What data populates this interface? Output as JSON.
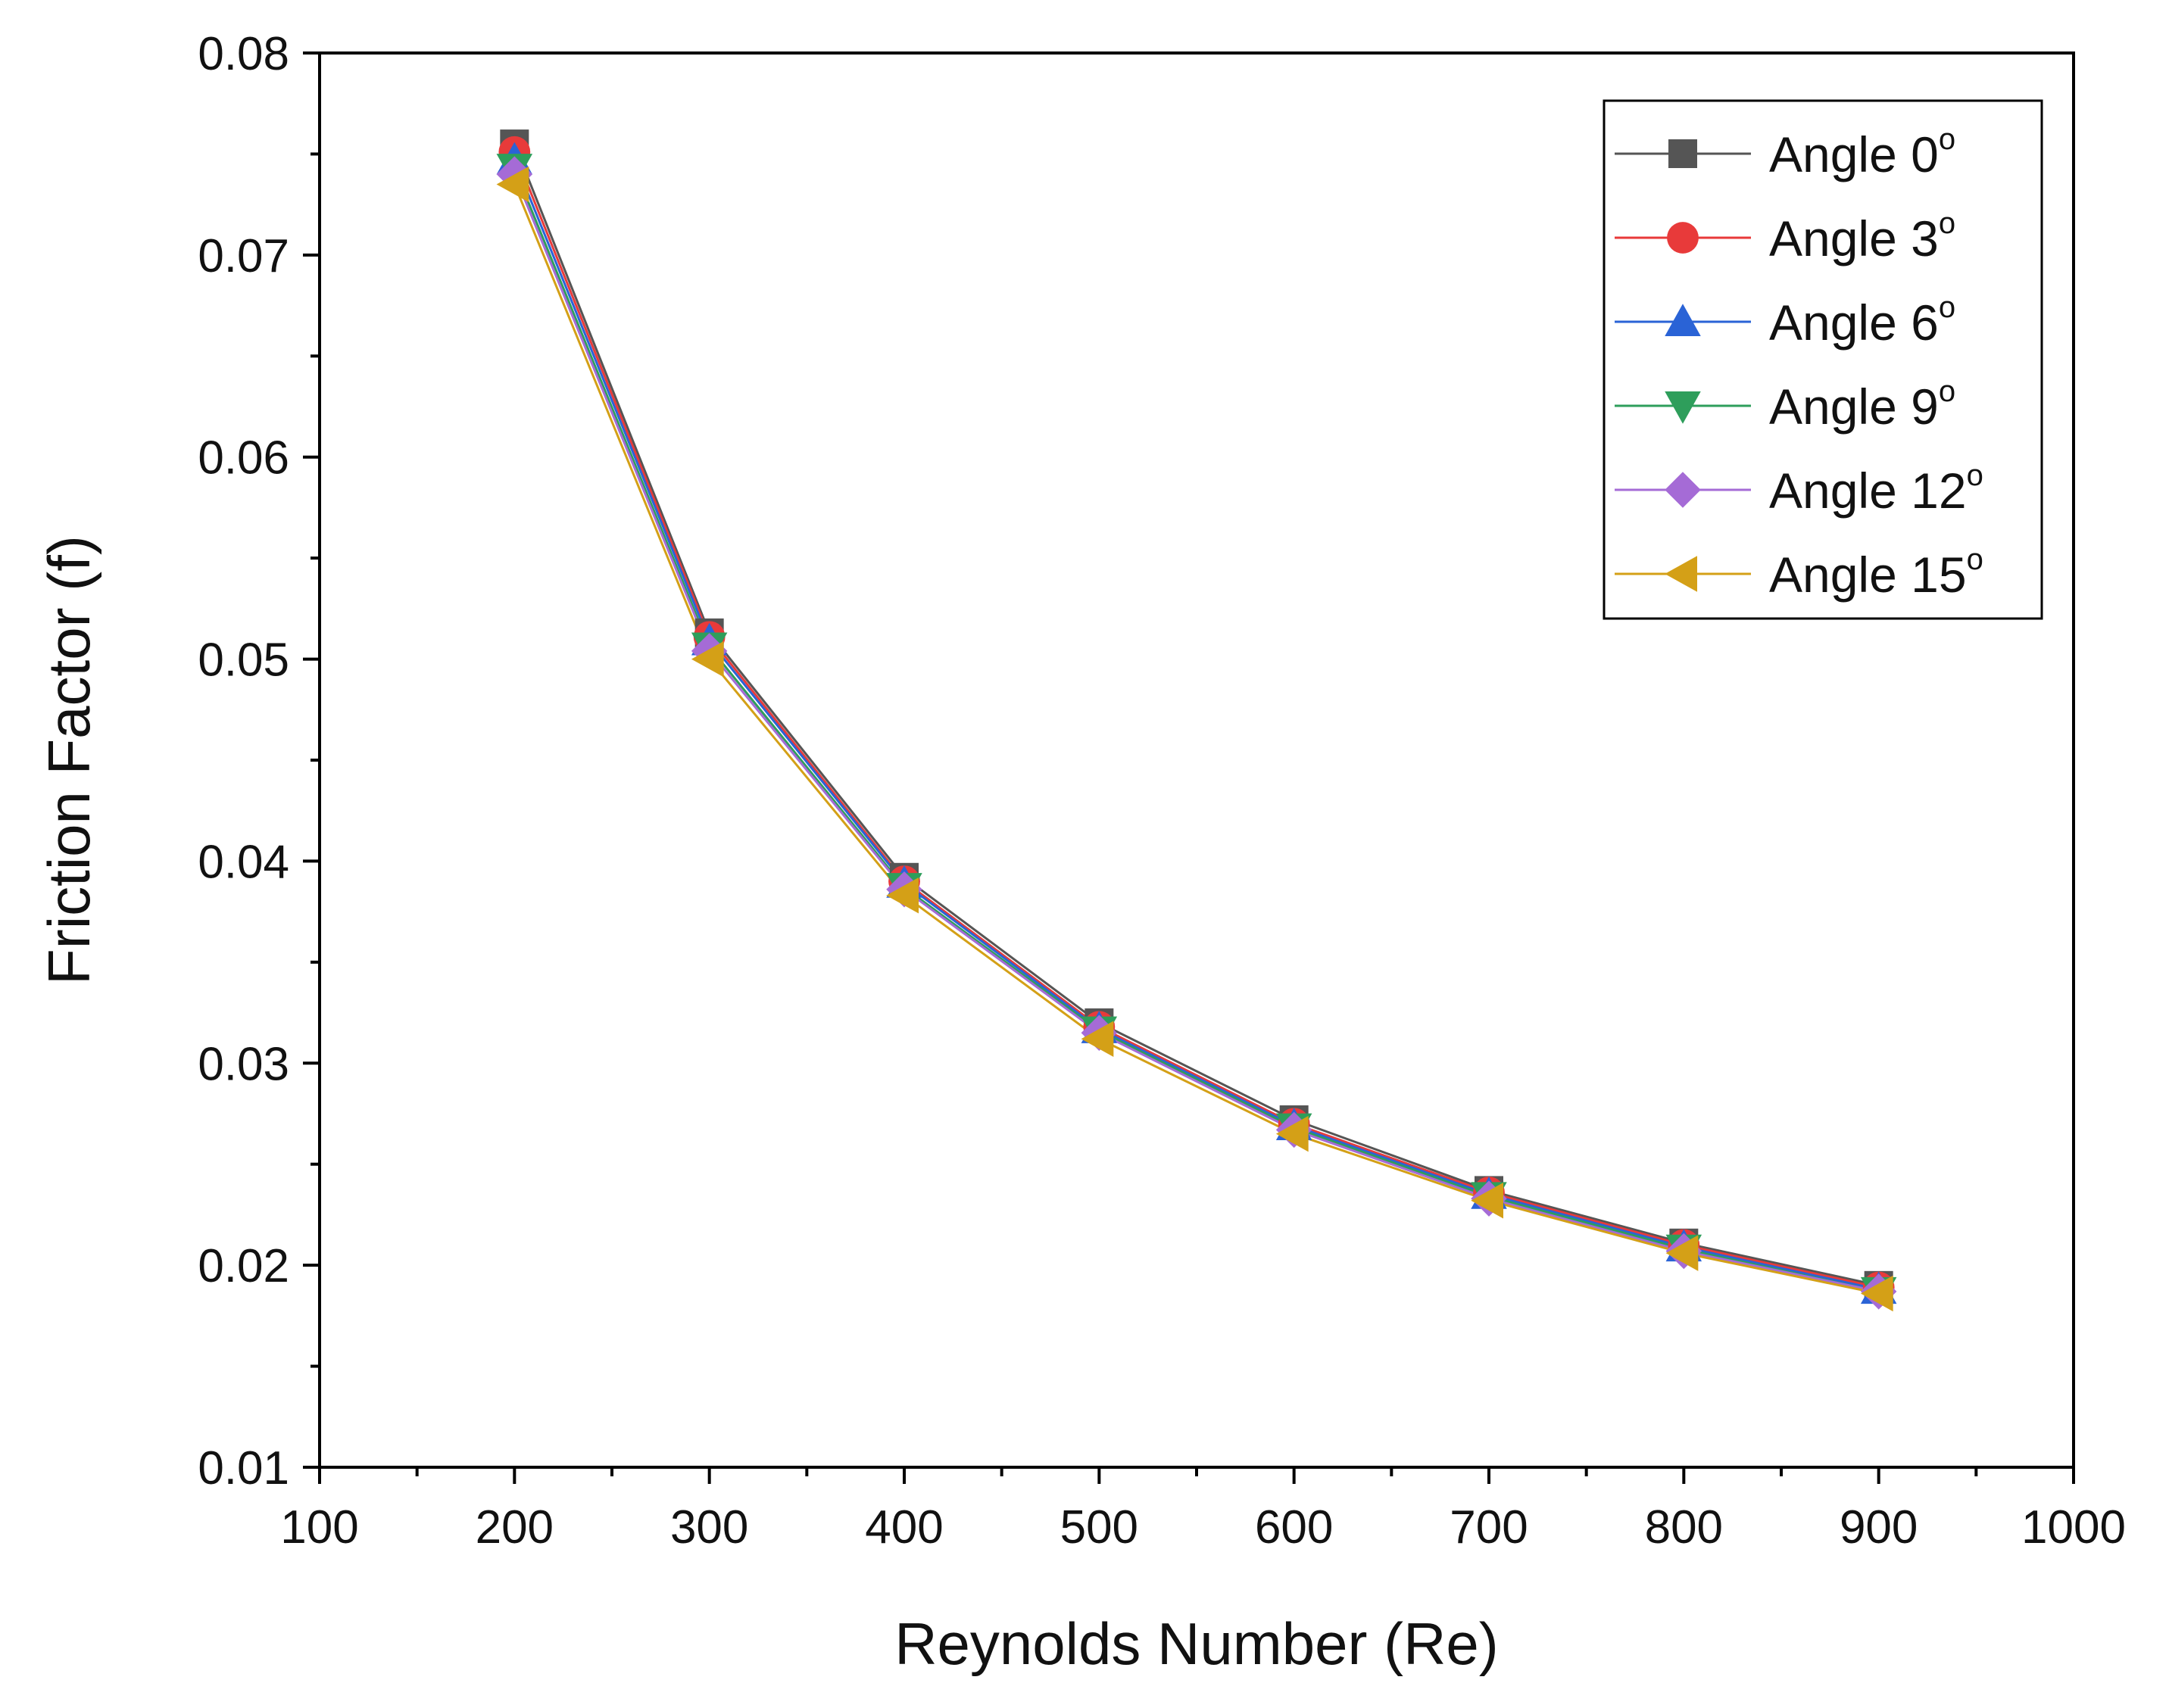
{
  "chart_data": {
    "type": "line",
    "title": "",
    "xlabel": "Reynolds Number (Re)",
    "ylabel": "Friction Factor (f)",
    "xlim": [
      100,
      1000
    ],
    "ylim": [
      0.01,
      0.08
    ],
    "x_ticks": [
      100,
      200,
      300,
      400,
      500,
      600,
      700,
      800,
      900,
      1000
    ],
    "x_tick_labels": [
      "100",
      "200",
      "300",
      "400",
      "500",
      "600",
      "700",
      "800",
      "900",
      "1000"
    ],
    "y_ticks": [
      0.01,
      0.02,
      0.03,
      0.04,
      0.05,
      0.06,
      0.07,
      0.08
    ],
    "y_tick_labels": [
      "0.01",
      "0.02",
      "0.03",
      "0.04",
      "0.05",
      "0.06",
      "0.07",
      "0.08"
    ],
    "x": [
      200,
      300,
      400,
      500,
      600,
      700,
      800,
      900
    ],
    "grid": false,
    "legend_position": "top-right",
    "series": [
      {
        "name": "Angle 0",
        "sup": "o",
        "color": "#555555",
        "marker": "square",
        "values": [
          0.0755,
          0.0513,
          0.0392,
          0.032,
          0.0272,
          0.0237,
          0.0211,
          0.019
        ]
      },
      {
        "name": "Angle 3",
        "sup": "o",
        "color": "#e83a3a",
        "marker": "circle",
        "values": [
          0.0751,
          0.0511,
          0.039,
          0.0318,
          0.027,
          0.0236,
          0.021,
          0.0189
        ]
      },
      {
        "name": "Angle 6",
        "sup": "o",
        "color": "#2a63d6",
        "marker": "triangle-up",
        "values": [
          0.0747,
          0.0509,
          0.0389,
          0.0317,
          0.0269,
          0.0235,
          0.0209,
          0.0188
        ]
      },
      {
        "name": "Angle 9",
        "sup": "o",
        "color": "#2e9e5b",
        "marker": "triangle-down",
        "values": [
          0.0743,
          0.0506,
          0.0387,
          0.0316,
          0.0268,
          0.0234,
          0.0208,
          0.0187
        ]
      },
      {
        "name": "Angle 12",
        "sup": "o",
        "color": "#a56bd6",
        "marker": "diamond",
        "values": [
          0.074,
          0.0504,
          0.0386,
          0.0315,
          0.0267,
          0.0233,
          0.0207,
          0.0187
        ]
      },
      {
        "name": "Angle 15",
        "sup": "o",
        "color": "#d4a017",
        "marker": "triangle-left",
        "values": [
          0.0735,
          0.05,
          0.0383,
          0.0312,
          0.0265,
          0.0232,
          0.0206,
          0.0186
        ]
      }
    ]
  }
}
